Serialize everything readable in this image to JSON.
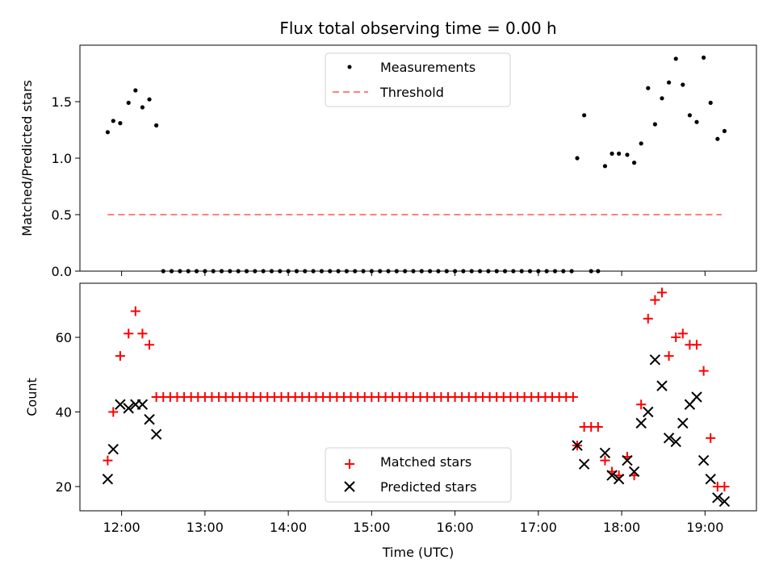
{
  "chart_data": [
    {
      "type": "scatter",
      "title": "Flux total observing time = 0.00 h",
      "xlabel": "",
      "ylabel": "Matched/Predicted stars",
      "xlim": [
        "11:30",
        "19:37"
      ],
      "ylim": [
        0,
        2.0
      ],
      "y_ticks": [
        0.0,
        0.5,
        1.0,
        1.5
      ],
      "y_tick_labels": [
        "0.0",
        "0.5",
        "1.0",
        "1.5"
      ],
      "legend_placement": "upper center",
      "series": [
        {
          "name": "Measurements",
          "marker": "dot",
          "color": "#000000",
          "points": [
            [
              "11:50",
              1.23
            ],
            [
              "11:54",
              1.33
            ],
            [
              "11:59",
              1.31
            ],
            [
              "12:05",
              1.49
            ],
            [
              "12:10",
              1.6
            ],
            [
              "12:15",
              1.45
            ],
            [
              "12:20",
              1.52
            ],
            [
              "12:25",
              1.29
            ],
            [
              "12:30",
              0.0
            ],
            [
              "12:36",
              0.0
            ],
            [
              "12:42",
              0.0
            ],
            [
              "12:48",
              0.0
            ],
            [
              "12:54",
              0.0
            ],
            [
              "13:00",
              0.0
            ],
            [
              "13:06",
              0.0
            ],
            [
              "13:12",
              0.0
            ],
            [
              "13:18",
              0.0
            ],
            [
              "13:24",
              0.0
            ],
            [
              "13:30",
              0.0
            ],
            [
              "13:36",
              0.0
            ],
            [
              "13:42",
              0.0
            ],
            [
              "13:48",
              0.0
            ],
            [
              "13:54",
              0.0
            ],
            [
              "14:00",
              0.0
            ],
            [
              "14:06",
              0.0
            ],
            [
              "14:12",
              0.0
            ],
            [
              "14:18",
              0.0
            ],
            [
              "14:24",
              0.0
            ],
            [
              "14:30",
              0.0
            ],
            [
              "14:36",
              0.0
            ],
            [
              "14:42",
              0.0
            ],
            [
              "14:48",
              0.0
            ],
            [
              "14:54",
              0.0
            ],
            [
              "15:00",
              0.0
            ],
            [
              "15:06",
              0.0
            ],
            [
              "15:12",
              0.0
            ],
            [
              "15:18",
              0.0
            ],
            [
              "15:24",
              0.0
            ],
            [
              "15:30",
              0.0
            ],
            [
              "15:36",
              0.0
            ],
            [
              "15:42",
              0.0
            ],
            [
              "15:48",
              0.0
            ],
            [
              "15:54",
              0.0
            ],
            [
              "16:00",
              0.0
            ],
            [
              "16:06",
              0.0
            ],
            [
              "16:12",
              0.0
            ],
            [
              "16:18",
              0.0
            ],
            [
              "16:24",
              0.0
            ],
            [
              "16:30",
              0.0
            ],
            [
              "16:36",
              0.0
            ],
            [
              "16:42",
              0.0
            ],
            [
              "16:48",
              0.0
            ],
            [
              "16:54",
              0.0
            ],
            [
              "17:00",
              0.0
            ],
            [
              "17:06",
              0.0
            ],
            [
              "17:12",
              0.0
            ],
            [
              "17:18",
              0.0
            ],
            [
              "17:24",
              0.0
            ],
            [
              "17:28",
              1.0
            ],
            [
              "17:33",
              1.38
            ],
            [
              "17:38",
              0.0
            ],
            [
              "17:43",
              0.0
            ],
            [
              "17:48",
              0.93
            ],
            [
              "17:53",
              1.04
            ],
            [
              "17:58",
              1.04
            ],
            [
              "18:04",
              1.03
            ],
            [
              "18:09",
              0.96
            ],
            [
              "18:14",
              1.13
            ],
            [
              "18:19",
              1.62
            ],
            [
              "18:24",
              1.3
            ],
            [
              "18:29",
              1.53
            ],
            [
              "18:34",
              1.67
            ],
            [
              "18:39",
              1.88
            ],
            [
              "18:44",
              1.65
            ],
            [
              "18:49",
              1.38
            ],
            [
              "18:54",
              1.32
            ],
            [
              "18:59",
              1.89
            ],
            [
              "19:04",
              1.49
            ],
            [
              "19:09",
              1.17
            ],
            [
              "19:14",
              1.24
            ]
          ]
        },
        {
          "name": "Threshold",
          "marker": "dashed-line",
          "color": "#ff8080",
          "points": [
            [
              "11:50",
              0.5
            ],
            [
              "19:12",
              0.5
            ]
          ]
        }
      ]
    },
    {
      "type": "scatter",
      "title": "",
      "xlabel": "Time (UTC)",
      "ylabel": "Count",
      "xlim": [
        "11:30",
        "19:37"
      ],
      "ylim": [
        13.5,
        74.5
      ],
      "y_ticks": [
        20,
        40,
        60
      ],
      "y_tick_labels": [
        "20",
        "40",
        "60"
      ],
      "x_ticks": [
        "12:00",
        "13:00",
        "14:00",
        "15:00",
        "16:00",
        "17:00",
        "18:00",
        "19:00"
      ],
      "legend_placement": "lower center",
      "series": [
        {
          "name": "Matched stars",
          "marker": "plus",
          "color": "#ff0000",
          "points": [
            [
              "11:50",
              27
            ],
            [
              "11:54",
              40
            ],
            [
              "11:59",
              55
            ],
            [
              "12:05",
              61
            ],
            [
              "12:10",
              67
            ],
            [
              "12:15",
              61
            ],
            [
              "12:20",
              58
            ],
            [
              "12:25",
              44
            ],
            [
              "12:30",
              44
            ],
            [
              "12:35",
              44
            ],
            [
              "12:40",
              44
            ],
            [
              "12:45",
              44
            ],
            [
              "12:50",
              44
            ],
            [
              "12:55",
              44
            ],
            [
              "13:00",
              44
            ],
            [
              "13:05",
              44
            ],
            [
              "13:10",
              44
            ],
            [
              "13:15",
              44
            ],
            [
              "13:20",
              44
            ],
            [
              "13:25",
              44
            ],
            [
              "13:30",
              44
            ],
            [
              "13:35",
              44
            ],
            [
              "13:40",
              44
            ],
            [
              "13:45",
              44
            ],
            [
              "13:50",
              44
            ],
            [
              "13:55",
              44
            ],
            [
              "14:00",
              44
            ],
            [
              "14:05",
              44
            ],
            [
              "14:10",
              44
            ],
            [
              "14:15",
              44
            ],
            [
              "14:20",
              44
            ],
            [
              "14:25",
              44
            ],
            [
              "14:30",
              44
            ],
            [
              "14:35",
              44
            ],
            [
              "14:40",
              44
            ],
            [
              "14:45",
              44
            ],
            [
              "14:50",
              44
            ],
            [
              "14:55",
              44
            ],
            [
              "15:00",
              44
            ],
            [
              "15:05",
              44
            ],
            [
              "15:10",
              44
            ],
            [
              "15:15",
              44
            ],
            [
              "15:20",
              44
            ],
            [
              "15:25",
              44
            ],
            [
              "15:30",
              44
            ],
            [
              "15:35",
              44
            ],
            [
              "15:40",
              44
            ],
            [
              "15:45",
              44
            ],
            [
              "15:50",
              44
            ],
            [
              "15:55",
              44
            ],
            [
              "16:00",
              44
            ],
            [
              "16:05",
              44
            ],
            [
              "16:10",
              44
            ],
            [
              "16:15",
              44
            ],
            [
              "16:20",
              44
            ],
            [
              "16:25",
              44
            ],
            [
              "16:30",
              44
            ],
            [
              "16:35",
              44
            ],
            [
              "16:40",
              44
            ],
            [
              "16:45",
              44
            ],
            [
              "16:50",
              44
            ],
            [
              "16:55",
              44
            ],
            [
              "17:00",
              44
            ],
            [
              "17:05",
              44
            ],
            [
              "17:10",
              44
            ],
            [
              "17:15",
              44
            ],
            [
              "17:20",
              44
            ],
            [
              "17:25",
              44
            ],
            [
              "17:28",
              31
            ],
            [
              "17:33",
              36
            ],
            [
              "17:38",
              36
            ],
            [
              "17:43",
              36
            ],
            [
              "17:48",
              27
            ],
            [
              "17:53",
              24
            ],
            [
              "17:58",
              23
            ],
            [
              "18:04",
              28
            ],
            [
              "18:09",
              23
            ],
            [
              "18:14",
              42
            ],
            [
              "18:19",
              65
            ],
            [
              "18:24",
              70
            ],
            [
              "18:29",
              72
            ],
            [
              "18:34",
              55
            ],
            [
              "18:39",
              60
            ],
            [
              "18:44",
              61
            ],
            [
              "18:49",
              58
            ],
            [
              "18:54",
              58
            ],
            [
              "18:59",
              51
            ],
            [
              "19:04",
              33
            ],
            [
              "19:09",
              20
            ],
            [
              "19:14",
              20
            ]
          ]
        },
        {
          "name": "Predicted stars",
          "marker": "x",
          "color": "#000000",
          "points": [
            [
              "11:50",
              22
            ],
            [
              "11:54",
              30
            ],
            [
              "11:59",
              42
            ],
            [
              "12:05",
              41
            ],
            [
              "12:10",
              42
            ],
            [
              "12:15",
              42
            ],
            [
              "12:20",
              38
            ],
            [
              "12:25",
              34
            ],
            [
              "17:28",
              31
            ],
            [
              "17:33",
              26
            ],
            [
              "17:48",
              29
            ],
            [
              "17:53",
              23
            ],
            [
              "17:58",
              22
            ],
            [
              "18:04",
              27
            ],
            [
              "18:09",
              24
            ],
            [
              "18:14",
              37
            ],
            [
              "18:19",
              40
            ],
            [
              "18:24",
              54
            ],
            [
              "18:29",
              47
            ],
            [
              "18:34",
              33
            ],
            [
              "18:39",
              32
            ],
            [
              "18:44",
              37
            ],
            [
              "18:49",
              42
            ],
            [
              "18:54",
              44
            ],
            [
              "18:59",
              27
            ],
            [
              "19:04",
              22
            ],
            [
              "19:09",
              17
            ],
            [
              "19:14",
              16
            ]
          ]
        }
      ]
    }
  ]
}
